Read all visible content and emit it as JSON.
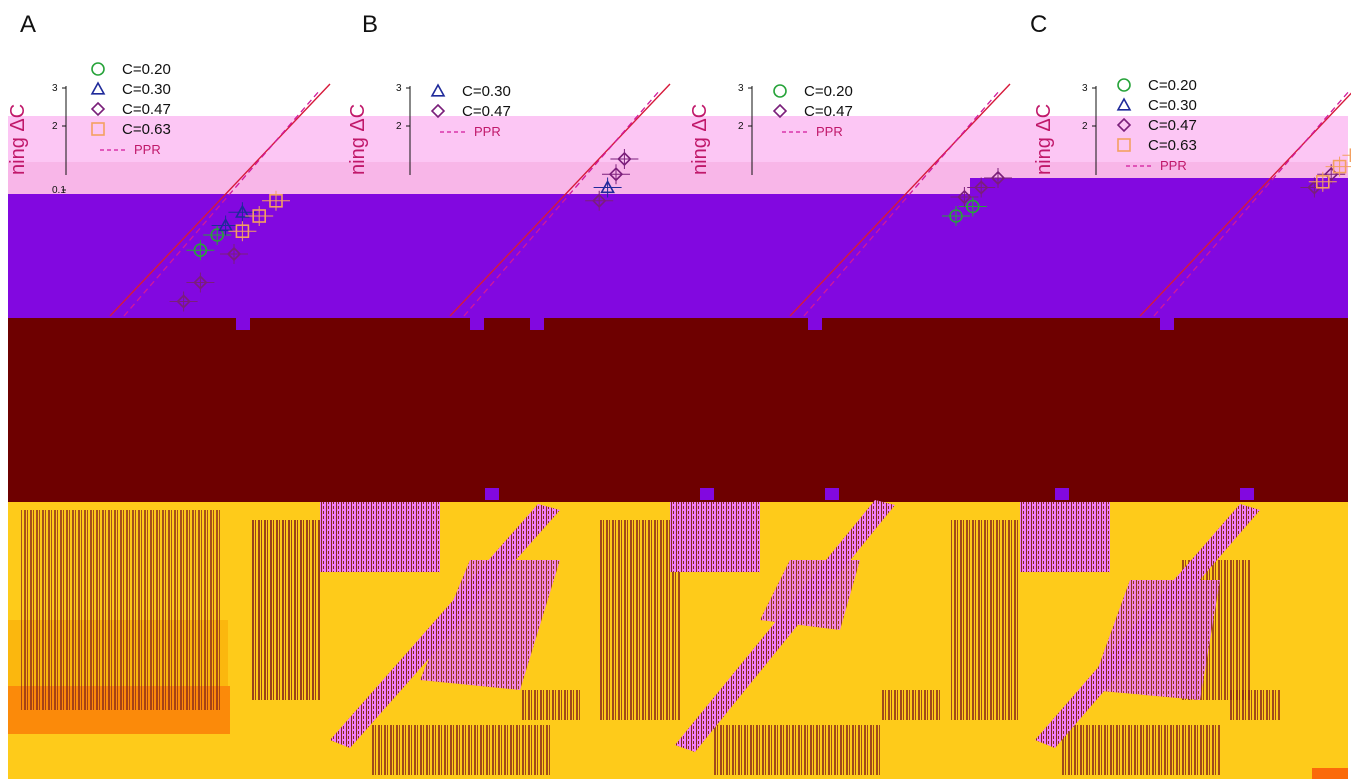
{
  "figure": {
    "panel_labels": [
      "A",
      "B",
      "",
      "C"
    ]
  },
  "colors": {
    "band_pink": "#fcc6f4",
    "band_purple": "#8208e0",
    "band_maroon": "#6e0000",
    "band_yellow": "#fecb1a",
    "band_orange": "#fb8a0a",
    "texture_brown": "#8a2a1a",
    "texture_magenta": "#f07cf8",
    "identity_red": "#d61a3a",
    "ppr_magenta": "#d1189a",
    "c020": "#27a33a",
    "c030": "#1f2a9a",
    "c047": "#7a1f7a",
    "c063": "#f3a060"
  },
  "legend_markers": {
    "C=0.20": "circle-icon",
    "C=0.30": "triangle-icon",
    "C=0.47": "diamond-icon",
    "C=0.63": "square-icon",
    "PPR": "dashed-line-icon"
  },
  "chart_data": [
    {
      "type": "scatter",
      "panel": "A",
      "ylabel": "ning ΔC",
      "yticks": [
        "3",
        "2",
        "0.1"
      ],
      "legend": [
        "C=0.20",
        "C=0.30",
        "C=0.47",
        "C=0.63",
        "PPR"
      ],
      "legend_placement": "top-left",
      "series": [
        {
          "name": "C=0.20",
          "marker": "circle",
          "points": [
            [
              0.52,
              1.22
            ],
            [
              0.56,
              1.3
            ]
          ]
        },
        {
          "name": "C=0.30",
          "marker": "triangle",
          "points": [
            [
              0.58,
              1.35
            ],
            [
              0.62,
              1.42
            ]
          ]
        },
        {
          "name": "C=0.47",
          "marker": "diamond",
          "points": [
            [
              0.48,
              0.95
            ],
            [
              0.52,
              1.05
            ],
            [
              0.6,
              1.2
            ]
          ]
        },
        {
          "name": "C=0.63",
          "marker": "square",
          "points": [
            [
              0.62,
              1.32
            ],
            [
              0.66,
              1.4
            ],
            [
              0.7,
              1.48
            ]
          ]
        }
      ]
    },
    {
      "type": "scatter",
      "panel": "B",
      "ylabel": "ning ΔC",
      "yticks": [
        "3",
        "2"
      ],
      "legend": [
        "C=0.30",
        "C=0.47",
        "PPR"
      ],
      "legend_placement": "top-left",
      "series": [
        {
          "name": "C=0.30",
          "marker": "triangle",
          "points": [
            [
              0.68,
              1.55
            ]
          ]
        },
        {
          "name": "C=0.47",
          "marker": "diamond",
          "points": [
            [
              0.66,
              1.48
            ],
            [
              0.7,
              1.62
            ],
            [
              0.72,
              1.7
            ]
          ]
        }
      ]
    },
    {
      "type": "scatter",
      "panel": "",
      "ylabel": "ning ΔC",
      "yticks": [
        "3",
        "2"
      ],
      "legend": [
        "C=0.20",
        "C=0.47",
        "PPR"
      ],
      "legend_placement": "top-left",
      "series": [
        {
          "name": "C=0.20",
          "marker": "circle",
          "points": [
            [
              0.7,
              1.4
            ],
            [
              0.74,
              1.45
            ]
          ]
        },
        {
          "name": "C=0.47",
          "marker": "diamond",
          "points": [
            [
              0.72,
              1.5
            ],
            [
              0.76,
              1.55
            ],
            [
              0.8,
              1.6
            ]
          ]
        }
      ]
    },
    {
      "type": "scatter",
      "panel": "C",
      "ylabel": "ning ΔC",
      "yticks": [
        "3",
        "2"
      ],
      "legend": [
        "C=0.20",
        "C=0.30",
        "C=0.47",
        "C=0.63",
        "PPR"
      ],
      "legend_placement": "top-left",
      "series": [
        {
          "name": "C=0.47",
          "marker": "diamond",
          "points": [
            [
              0.72,
              1.55
            ],
            [
              0.76,
              1.62
            ]
          ]
        },
        {
          "name": "C=0.63",
          "marker": "square",
          "points": [
            [
              0.74,
              1.58
            ],
            [
              0.78,
              1.66
            ],
            [
              0.82,
              1.72
            ]
          ]
        }
      ]
    }
  ]
}
